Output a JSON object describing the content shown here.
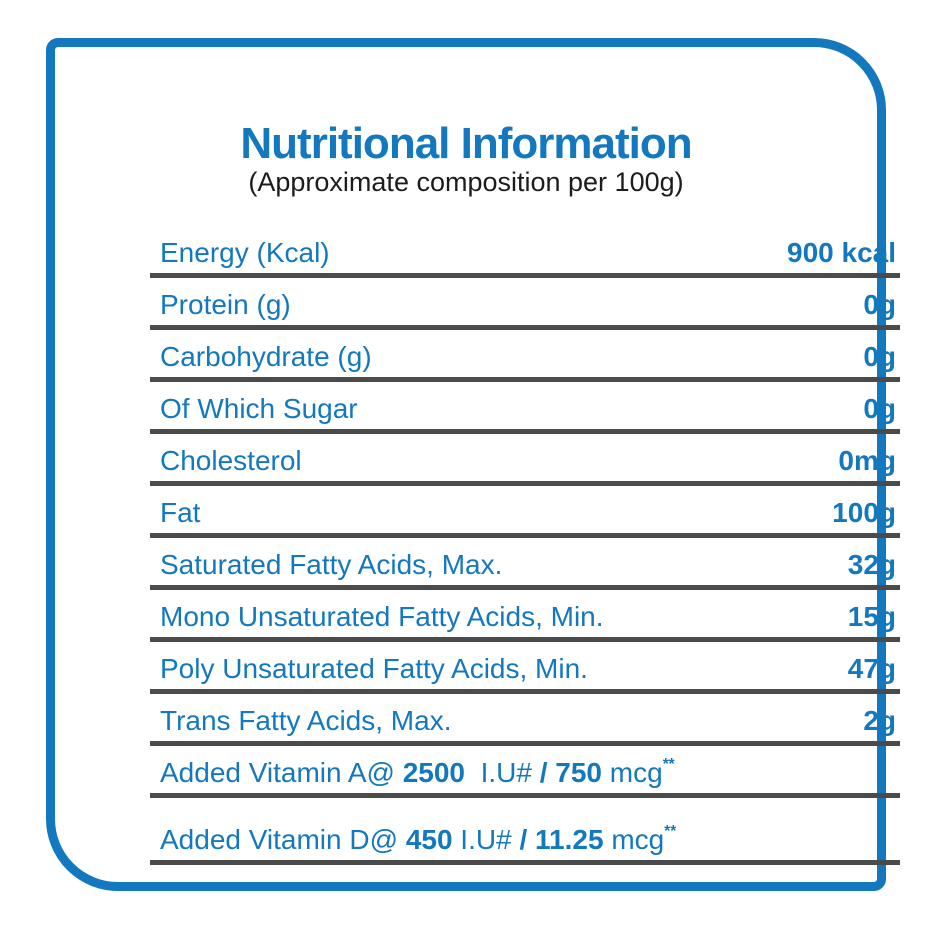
{
  "colors": {
    "accent": "#1478bf",
    "line": "#4b4b4b",
    "subtitle_text": "#1c1c1c"
  },
  "header": {
    "title": "Nutritional Information",
    "subtitle": "(Approximate composition per 100g)"
  },
  "table": {
    "rows": [
      {
        "label": "Energy (Kcal)",
        "value": "900 kcal"
      },
      {
        "label": "Protein (g)",
        "value": "0g"
      },
      {
        "label": "Carbohydrate (g)",
        "value": "0g"
      },
      {
        "label": "Of Which Sugar",
        "value": "0g"
      },
      {
        "label": "Cholesterol",
        "value": "0mg"
      },
      {
        "label": "Fat",
        "value": "100g"
      },
      {
        "label": "Saturated Fatty Acids, Max.",
        "value": "32g"
      },
      {
        "label": "Mono Unsaturated Fatty Acids, Min.",
        "value": "15g"
      },
      {
        "label": "Poly Unsaturated Fatty Acids, Min.",
        "value": "47g"
      },
      {
        "label": "Trans Fatty Acids, Max.",
        "value": "2g"
      },
      {
        "parts": [
          {
            "t": "Added Vitamin A@ "
          },
          {
            "t": "2500",
            "b": true
          },
          {
            "t": "  I.U# "
          },
          {
            "t": "/ 750",
            "b": true
          },
          {
            "t": " mcg"
          },
          {
            "t": "**",
            "sup": true
          }
        ]
      },
      {
        "parts": [
          {
            "t": "Added Vitamin D@ "
          },
          {
            "t": "450",
            "b": true
          },
          {
            "t": " I.U# "
          },
          {
            "t": "/ 11.25",
            "b": true
          },
          {
            "t": " mcg"
          },
          {
            "t": "**",
            "sup": true
          }
        ]
      }
    ]
  }
}
